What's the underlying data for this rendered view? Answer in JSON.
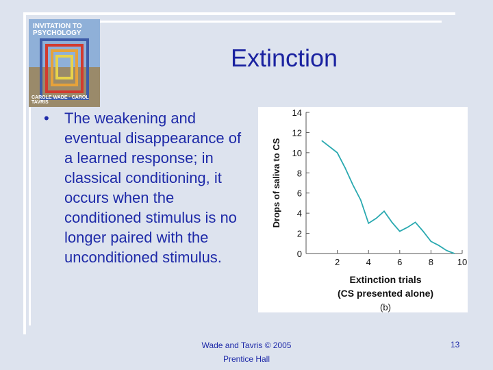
{
  "slide": {
    "title": "Extinction",
    "bullet": "The weakening and eventual disappearance of a learned response; in classical conditioning, it occurs when the conditioned stimulus is no longer paired with the unconditioned stimulus.",
    "footer_line1": "Wade and Tavris © 2005",
    "footer_line2": "Prentice Hall",
    "page_number": "13"
  },
  "book_cover": {
    "title": "INVITATION TO PSYCHOLOGY",
    "authors": "CAROLE WADE · CAROL TAVRIS"
  },
  "colors": {
    "background": "#dde3ee",
    "text": "#1e2aa8",
    "title": "#1a22a0",
    "line": "#2aa9b0"
  },
  "chart_data": {
    "type": "line",
    "ylabel": "Drops of saliva to CS",
    "xlabel": "Extinction trials",
    "xlabel2": "(CS presented alone)",
    "panel_label": "(b)",
    "xlim": [
      0,
      10
    ],
    "ylim": [
      0,
      14
    ],
    "xticks": [
      2,
      4,
      6,
      8,
      10
    ],
    "yticks": [
      0,
      2,
      4,
      6,
      8,
      10,
      12,
      14
    ],
    "grid": false,
    "series": [
      {
        "x": [
          1,
          1.5,
          2,
          2.5,
          3,
          3.5,
          4,
          4.5,
          5,
          5.5,
          6,
          6.5,
          7,
          7.5,
          8,
          8.5,
          9,
          9.5
        ],
        "values": [
          11.2,
          10.6,
          10,
          8.5,
          6.8,
          5.3,
          3,
          3.5,
          4.2,
          3.1,
          2.2,
          2.6,
          3.1,
          2.2,
          1.2,
          0.8,
          0.3,
          0
        ]
      }
    ]
  }
}
